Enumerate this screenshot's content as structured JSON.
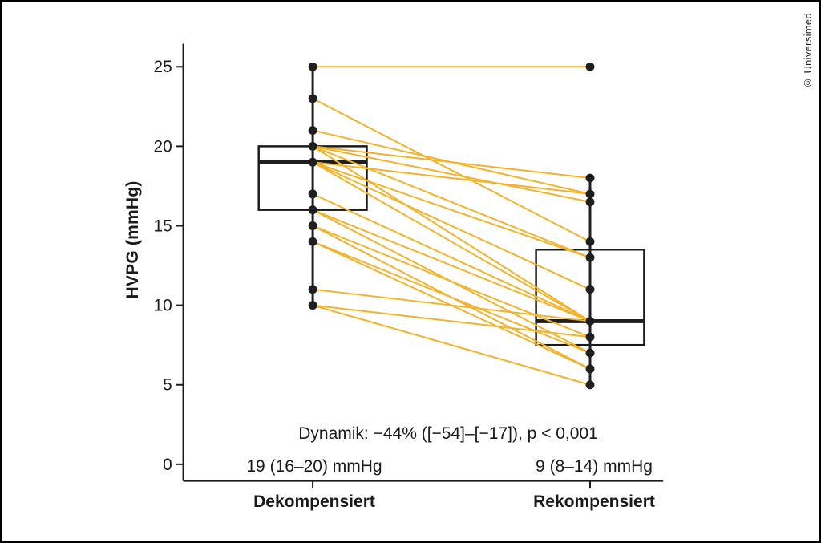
{
  "credit": "© Universimed",
  "chart_data": {
    "type": "paired-boxplot-lines",
    "title": "",
    "ylabel": "HVPG (mmHg)",
    "yticks": [
      0,
      5,
      10,
      15,
      20,
      25
    ],
    "ylim": [
      0,
      26.5
    ],
    "annotation": "Dynamik: −44% ([−54]–[−17]), p < 0,001",
    "colors": {
      "pair_line": "#F3B229",
      "point": "#1f1f1f",
      "axis": "#1a1a1a"
    },
    "groups": [
      {
        "label": "Dekompensiert",
        "summary_label": "19 (16–20) mmHg",
        "median": 19,
        "q1": 16,
        "q3": 20,
        "whisker_low": 10,
        "whisker_high": 25,
        "points": [
          25,
          23,
          21,
          20,
          19,
          17,
          16,
          15,
          14,
          11,
          10
        ]
      },
      {
        "label": "Rekompensiert",
        "summary_label": "9 (8–14) mmHg",
        "median": 9,
        "q1": 7.5,
        "q3": 13.5,
        "whisker_low": 5,
        "whisker_high": 18,
        "outlier": 25,
        "points": [
          25,
          18,
          17,
          16.5,
          14,
          13,
          11,
          9,
          8,
          7,
          6,
          5
        ]
      }
    ],
    "pairs": [
      [
        25,
        25
      ],
      [
        23,
        14
      ],
      [
        21,
        17
      ],
      [
        20,
        18
      ],
      [
        20,
        16.5
      ],
      [
        20,
        13
      ],
      [
        20,
        9
      ],
      [
        19,
        17
      ],
      [
        19,
        13
      ],
      [
        19,
        11
      ],
      [
        19,
        9
      ],
      [
        17,
        9
      ],
      [
        16,
        9
      ],
      [
        16,
        7
      ],
      [
        15,
        8
      ],
      [
        15,
        6
      ],
      [
        14,
        7
      ],
      [
        14,
        6
      ],
      [
        11,
        9
      ],
      [
        10,
        8
      ],
      [
        10,
        5
      ]
    ]
  }
}
